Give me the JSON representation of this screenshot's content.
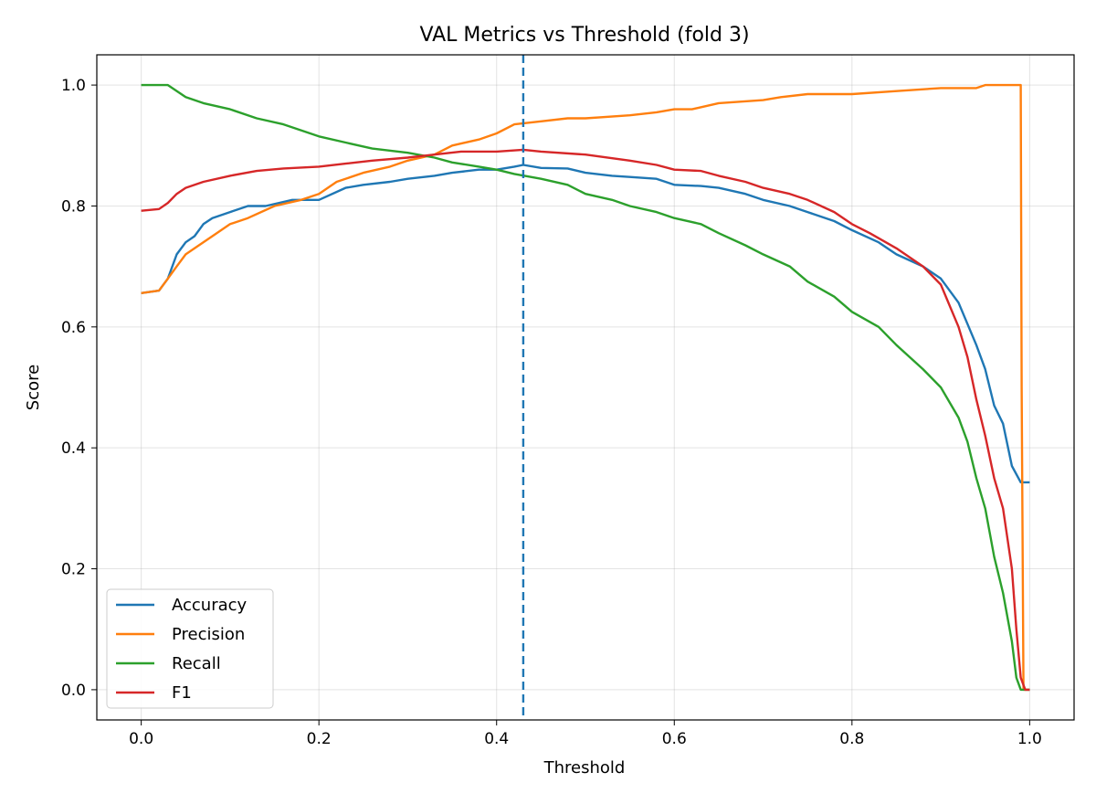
{
  "chart_data": {
    "type": "line",
    "title": "VAL Metrics vs Threshold (fold 3)",
    "xlabel": "Threshold",
    "ylabel": "Score",
    "xlim": [
      -0.05,
      1.05
    ],
    "ylim": [
      -0.05,
      1.05
    ],
    "xticks": [
      "0.0",
      "0.2",
      "0.4",
      "0.6",
      "0.8",
      "1.0"
    ],
    "yticks": [
      "0.0",
      "0.2",
      "0.4",
      "0.6",
      "0.8",
      "1.0"
    ],
    "grid": true,
    "legend_position": "lower-left",
    "threshold_marker": {
      "x": 0.43,
      "style": "dashed",
      "color": "#1f77b4"
    },
    "series": [
      {
        "name": "Accuracy",
        "color": "#1f77b4",
        "x": [
          0.0,
          0.02,
          0.03,
          0.04,
          0.05,
          0.06,
          0.07,
          0.08,
          0.1,
          0.12,
          0.14,
          0.17,
          0.2,
          0.23,
          0.25,
          0.28,
          0.3,
          0.33,
          0.35,
          0.38,
          0.4,
          0.42,
          0.43,
          0.45,
          0.48,
          0.5,
          0.53,
          0.55,
          0.58,
          0.6,
          0.63,
          0.65,
          0.68,
          0.7,
          0.73,
          0.75,
          0.78,
          0.8,
          0.83,
          0.85,
          0.88,
          0.9,
          0.92,
          0.94,
          0.95,
          0.96,
          0.97,
          0.98,
          0.99,
          1.0
        ],
        "y": [
          0.656,
          0.66,
          0.68,
          0.72,
          0.74,
          0.75,
          0.77,
          0.78,
          0.79,
          0.8,
          0.8,
          0.81,
          0.81,
          0.83,
          0.835,
          0.84,
          0.845,
          0.85,
          0.855,
          0.86,
          0.86,
          0.865,
          0.868,
          0.863,
          0.862,
          0.855,
          0.85,
          0.848,
          0.845,
          0.835,
          0.833,
          0.83,
          0.82,
          0.81,
          0.8,
          0.79,
          0.775,
          0.76,
          0.74,
          0.72,
          0.7,
          0.68,
          0.64,
          0.57,
          0.53,
          0.47,
          0.44,
          0.37,
          0.343,
          0.343
        ]
      },
      {
        "name": "Precision",
        "color": "#ff7f0e",
        "x": [
          0.0,
          0.02,
          0.03,
          0.04,
          0.05,
          0.06,
          0.08,
          0.1,
          0.12,
          0.15,
          0.18,
          0.2,
          0.22,
          0.25,
          0.28,
          0.3,
          0.33,
          0.35,
          0.38,
          0.4,
          0.42,
          0.45,
          0.48,
          0.5,
          0.55,
          0.58,
          0.6,
          0.62,
          0.65,
          0.7,
          0.72,
          0.75,
          0.8,
          0.85,
          0.9,
          0.94,
          0.95,
          0.99,
          0.991,
          0.993,
          1.0
        ],
        "y": [
          0.656,
          0.66,
          0.68,
          0.7,
          0.72,
          0.73,
          0.75,
          0.77,
          0.78,
          0.8,
          0.81,
          0.82,
          0.84,
          0.855,
          0.865,
          0.875,
          0.885,
          0.9,
          0.91,
          0.92,
          0.935,
          0.94,
          0.945,
          0.945,
          0.95,
          0.955,
          0.96,
          0.96,
          0.97,
          0.975,
          0.98,
          0.985,
          0.985,
          0.99,
          0.995,
          0.995,
          1.0,
          1.0,
          0.5,
          0.0,
          0.0
        ]
      },
      {
        "name": "Recall",
        "color": "#2ca02c",
        "x": [
          0.0,
          0.03,
          0.05,
          0.07,
          0.1,
          0.13,
          0.16,
          0.2,
          0.23,
          0.26,
          0.3,
          0.33,
          0.35,
          0.38,
          0.4,
          0.42,
          0.45,
          0.48,
          0.5,
          0.53,
          0.55,
          0.58,
          0.6,
          0.63,
          0.65,
          0.68,
          0.7,
          0.73,
          0.75,
          0.78,
          0.8,
          0.83,
          0.85,
          0.88,
          0.9,
          0.92,
          0.93,
          0.94,
          0.95,
          0.96,
          0.97,
          0.98,
          0.985,
          0.99,
          0.995,
          1.0
        ],
        "y": [
          1.0,
          1.0,
          0.98,
          0.97,
          0.96,
          0.945,
          0.935,
          0.915,
          0.905,
          0.895,
          0.888,
          0.88,
          0.872,
          0.865,
          0.86,
          0.853,
          0.845,
          0.835,
          0.82,
          0.81,
          0.8,
          0.79,
          0.78,
          0.77,
          0.755,
          0.735,
          0.72,
          0.7,
          0.675,
          0.65,
          0.625,
          0.6,
          0.57,
          0.53,
          0.5,
          0.45,
          0.41,
          0.35,
          0.3,
          0.22,
          0.16,
          0.08,
          0.02,
          0.0,
          0.0,
          0.0
        ]
      },
      {
        "name": "F1",
        "color": "#d62728",
        "x": [
          0.0,
          0.02,
          0.03,
          0.04,
          0.05,
          0.07,
          0.1,
          0.13,
          0.16,
          0.2,
          0.23,
          0.26,
          0.3,
          0.33,
          0.36,
          0.4,
          0.43,
          0.45,
          0.5,
          0.55,
          0.58,
          0.6,
          0.63,
          0.65,
          0.68,
          0.7,
          0.73,
          0.75,
          0.78,
          0.8,
          0.82,
          0.85,
          0.88,
          0.9,
          0.92,
          0.93,
          0.94,
          0.95,
          0.96,
          0.97,
          0.98,
          0.985,
          0.99,
          0.995,
          1.0
        ],
        "y": [
          0.792,
          0.795,
          0.805,
          0.82,
          0.83,
          0.84,
          0.85,
          0.858,
          0.862,
          0.865,
          0.87,
          0.875,
          0.88,
          0.885,
          0.89,
          0.89,
          0.893,
          0.89,
          0.885,
          0.875,
          0.868,
          0.86,
          0.858,
          0.85,
          0.84,
          0.83,
          0.82,
          0.81,
          0.79,
          0.77,
          0.755,
          0.73,
          0.7,
          0.67,
          0.6,
          0.55,
          0.48,
          0.42,
          0.35,
          0.3,
          0.2,
          0.1,
          0.02,
          0.0,
          0.0
        ]
      }
    ]
  }
}
